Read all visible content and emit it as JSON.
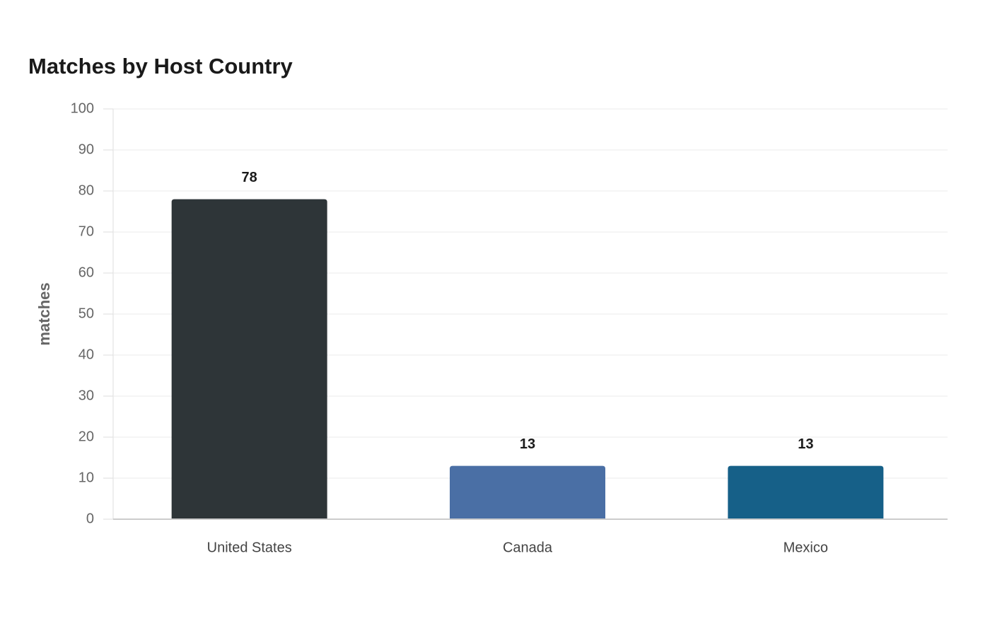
{
  "chart_data": {
    "type": "bar",
    "title": "Matches by Host Country",
    "y_label": "matches",
    "categories": [
      "United States",
      "Canada",
      "Mexico"
    ],
    "values": [
      78,
      13,
      13
    ],
    "colors": [
      "#2e3538",
      "#4a6fa5",
      "#166088"
    ],
    "ylim": [
      0,
      100
    ],
    "yticks": [
      0,
      10,
      20,
      30,
      40,
      50,
      60,
      70,
      80,
      90,
      100
    ],
    "grid": true
  }
}
